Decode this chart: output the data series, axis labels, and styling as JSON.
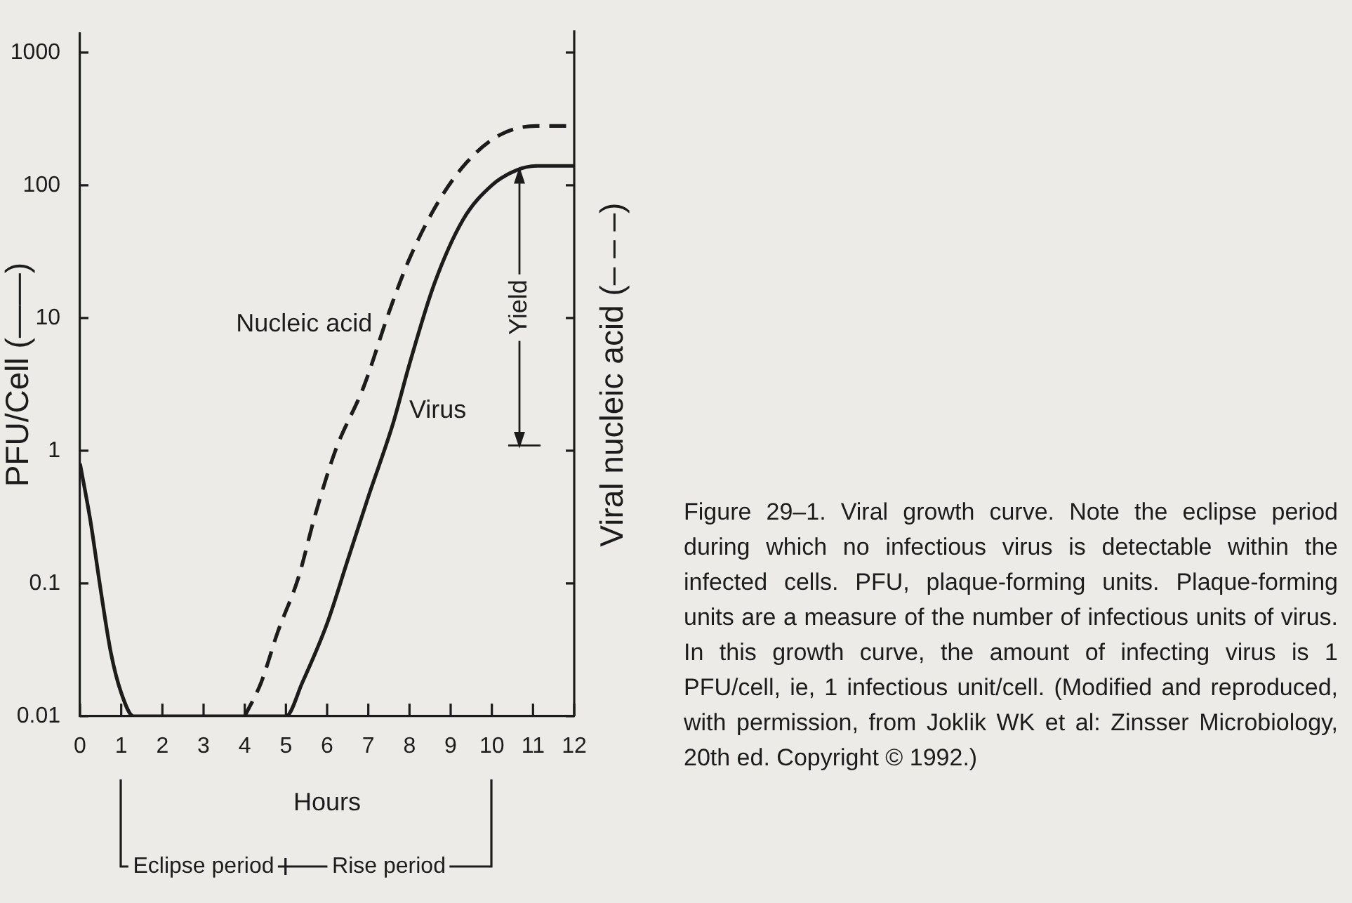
{
  "chart_data": {
    "type": "line",
    "xlabel": "Hours",
    "ylabel": "PFU/Cell (——)",
    "y2label": "Viral nucleic acid (– – –)",
    "xlim": [
      0,
      12
    ],
    "xticks": [
      0,
      1,
      2,
      3,
      4,
      5,
      6,
      7,
      8,
      9,
      10,
      11,
      12
    ],
    "ylim": [
      0.01,
      1400
    ],
    "yticks": [
      0.01,
      0.1,
      1,
      10,
      100,
      1000
    ],
    "log": "y",
    "grid": false,
    "legend": false,
    "marker": "none",
    "series": [
      {
        "name": "Virus",
        "color": "#1c1c1c",
        "line_style": "solid",
        "x": [
          0,
          0.25,
          0.5,
          0.75,
          1,
          1.3,
          2,
          3,
          4,
          5,
          5.4,
          6,
          6.5,
          7,
          7.6,
          8,
          8.6,
          9.3,
          10,
          10.6,
          11.1,
          12
        ],
        "values": [
          0.8,
          0.3,
          0.09,
          0.03,
          0.015,
          0.01,
          0.01,
          0.01,
          0.01,
          0.01,
          0.018,
          0.05,
          0.15,
          0.45,
          1.6,
          4.5,
          18,
          55,
          100,
          130,
          140,
          140
        ]
      },
      {
        "name": "Nucleic acid",
        "color": "#1c1c1c",
        "line_style": "dashed",
        "x": [
          4,
          4.4,
          4.8,
          5.3,
          5.7,
          6.2,
          6.9,
          7.5,
          8,
          8.7,
          9.4,
          10.2,
          11.1,
          12
        ],
        "values": [
          0.01,
          0.018,
          0.043,
          0.11,
          0.32,
          1,
          3.1,
          11,
          28,
          75,
          150,
          240,
          280,
          280
        ]
      }
    ],
    "annotations": [
      "Yield",
      "Eclipse period",
      "Rise period",
      "Figure 29–1. Viral growth curve. Note the eclipse period during which no infectious virus is detectable within the infected cells. PFU, plaque-forming units. Plaque-forming units are a measure of the number of infectious units of virus. In this growth curve, the amount of infecting virus is 1 PFU/cell, ie, 1 infectious unit/cell. (Modified and reproduced, with permission, from Joklik WK et al: Zinsser Microbiology, 20th ed. Copyright © 1992.)"
    ]
  }
}
